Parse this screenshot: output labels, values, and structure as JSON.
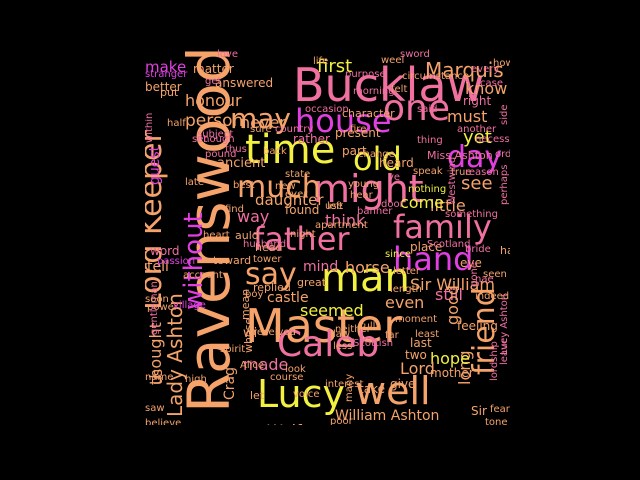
{
  "words": [
    {
      "text": "Ravenswood",
      "color": "#f5a36b"
    },
    {
      "text": "Master",
      "color": "#f5a36b"
    },
    {
      "text": "Bucklaw",
      "color": "#f070a0"
    },
    {
      "text": "Lord Keeper",
      "color": "#f5a36b"
    },
    {
      "text": "time",
      "color": "#f2f040"
    },
    {
      "text": "house",
      "color": "#e040e0"
    },
    {
      "text": "one",
      "color": "#f070a0"
    },
    {
      "text": "father",
      "color": "#f070a0"
    },
    {
      "text": "might",
      "color": "#f070a0"
    },
    {
      "text": "much",
      "color": "#f5a36b"
    },
    {
      "text": "Caleb",
      "color": "#f070a0"
    },
    {
      "text": "man",
      "color": "#f2f040"
    },
    {
      "text": "Lucy",
      "color": "#f2f040"
    },
    {
      "text": "well",
      "color": "#f5a36b"
    },
    {
      "text": "family",
      "color": "#f070a0"
    },
    {
      "text": "hand",
      "color": "#e040e0"
    },
    {
      "text": "friend",
      "color": "#f5a36b"
    },
    {
      "text": "day",
      "color": "#e040e0"
    },
    {
      "text": "old",
      "color": "#f2f040"
    },
    {
      "text": "say",
      "color": "#f5a36b"
    },
    {
      "text": "may",
      "color": "#f5a36b"
    },
    {
      "text": "without",
      "color": "#e040e0"
    },
    {
      "text": "Lady Ashton",
      "color": "#f5a36b"
    },
    {
      "text": "Marquis",
      "color": "#f5a36b"
    },
    {
      "text": "first",
      "color": "#f2f040"
    },
    {
      "text": "know",
      "color": "#f5a36b"
    },
    {
      "text": "must",
      "color": "#f5a36b"
    },
    {
      "text": "yet",
      "color": "#f2f040"
    },
    {
      "text": "see",
      "color": "#f5a36b"
    },
    {
      "text": "little",
      "color": "#f5a36b"
    },
    {
      "text": "come",
      "color": "#f2f040"
    },
    {
      "text": "daughter",
      "color": "#f5a36b"
    },
    {
      "text": "never",
      "color": "#f5a36b"
    },
    {
      "text": "honour",
      "color": "#f5a36b"
    },
    {
      "text": "make",
      "color": "#e040e0"
    },
    {
      "text": "person",
      "color": "#f5a36b"
    },
    {
      "text": "thought",
      "color": "#f5a36b"
    },
    {
      "text": "think",
      "color": "#f070a0"
    },
    {
      "text": "way",
      "color": "#f070a0"
    },
    {
      "text": "mind",
      "color": "#f070a0"
    },
    {
      "text": "horse",
      "color": "#f5a36b"
    },
    {
      "text": "castle",
      "color": "#f5a36b"
    },
    {
      "text": "seemed",
      "color": "#f2f040"
    },
    {
      "text": "Sir William",
      "color": "#f5a36b"
    },
    {
      "text": "still",
      "color": "#f070a0"
    },
    {
      "text": "even",
      "color": "#f5a36b"
    },
    {
      "text": "good",
      "color": "#f5a36b"
    },
    {
      "text": "long",
      "color": "#f5a36b"
    },
    {
      "text": "hope",
      "color": "#f2f040"
    },
    {
      "text": "Lord",
      "color": "#f5a36b"
    },
    {
      "text": "made",
      "color": "#f070a0"
    },
    {
      "text": "Craigengelt",
      "color": "#f5a36b"
    },
    {
      "text": "Wolf",
      "color": "#f5a36b"
    },
    {
      "text": "William Ashton",
      "color": "#f5a36b"
    },
    {
      "text": "us",
      "color": "#f5a36b"
    },
    {
      "text": "tell",
      "color": "#f5a36b"
    },
    {
      "text": "word",
      "color": "#f070a0"
    },
    {
      "text": "guest",
      "color": "#e040e0"
    },
    {
      "text": "better",
      "color": "#f5a36b"
    },
    {
      "text": "matter",
      "color": "#f5a36b"
    },
    {
      "text": "answered",
      "color": "#f5a36b"
    },
    {
      "text": "however",
      "color": "#f5a36b"
    },
    {
      "text": "present",
      "color": "#f5a36b"
    },
    {
      "text": "part",
      "color": "#f5a36b"
    },
    {
      "text": "heard",
      "color": "#f5a36b"
    },
    {
      "text": "ancient",
      "color": "#f5a36b"
    },
    {
      "text": "found",
      "color": "#f5a36b"
    },
    {
      "text": "place",
      "color": "#f5a36b"
    },
    {
      "text": "hae",
      "color": "#f5a36b"
    },
    {
      "text": "eye",
      "color": "#f5a36b"
    },
    {
      "text": "mother",
      "color": "#f5a36b"
    },
    {
      "text": "two",
      "color": "#f5a36b"
    },
    {
      "text": "last",
      "color": "#f5a36b"
    },
    {
      "text": "take",
      "color": "#f5a36b"
    },
    {
      "text": "give",
      "color": "#f5a36b"
    },
    {
      "text": "Sir",
      "color": "#f5a36b"
    },
    {
      "text": "Crag",
      "color": "#f5a36b"
    },
    {
      "text": "feeling",
      "color": "#f5a36b"
    },
    {
      "text": "rather",
      "color": "#f070a0"
    },
    {
      "text": "Miss Ashton",
      "color": "#f070a0"
    },
    {
      "text": "life",
      "color": "#f5a36b"
    },
    {
      "text": "purpose",
      "color": "#f070a0"
    },
    {
      "text": "circumstance",
      "color": "#f5a36b"
    },
    {
      "text": "every",
      "color": "#f070a0"
    },
    {
      "text": "right",
      "color": "#f070a0"
    },
    {
      "text": "another",
      "color": "#f070a0"
    },
    {
      "text": "character",
      "color": "#f5a36b"
    },
    {
      "text": "occasion",
      "color": "#f070a0"
    },
    {
      "text": "subject",
      "color": "#f070a0"
    },
    {
      "text": "sure",
      "color": "#f5a36b"
    },
    {
      "text": "put",
      "color": "#f5a36b"
    },
    {
      "text": "stranger",
      "color": "#e040e0"
    },
    {
      "text": "thing",
      "color": "#f070a0"
    },
    {
      "text": "speak",
      "color": "#f5a36b"
    },
    {
      "text": "state",
      "color": "#f5a36b"
    },
    {
      "text": "young",
      "color": "#f5a36b"
    },
    {
      "text": "new",
      "color": "#f5a36b"
    },
    {
      "text": "ever",
      "color": "#f5a36b"
    },
    {
      "text": "left",
      "color": "#f5a36b"
    },
    {
      "text": "auld",
      "color": "#f5a36b"
    },
    {
      "text": "night",
      "color": "#f5a36b"
    },
    {
      "text": "head",
      "color": "#f5a36b"
    },
    {
      "text": "toward",
      "color": "#f5a36b"
    },
    {
      "text": "apartment",
      "color": "#f5a36b"
    },
    {
      "text": "since",
      "color": "#f2f040"
    },
    {
      "text": "replied",
      "color": "#f5a36b"
    },
    {
      "text": "great",
      "color": "#f5a36b"
    },
    {
      "text": "mean",
      "color": "#f5a36b"
    },
    {
      "text": "boy",
      "color": "#f5a36b"
    },
    {
      "text": "received",
      "color": "#f5a36b"
    },
    {
      "text": "whose",
      "color": "#f5a36b"
    },
    {
      "text": "spirit",
      "color": "#f5a36b"
    },
    {
      "text": "Alice",
      "color": "#f5a36b"
    },
    {
      "text": "course",
      "color": "#f5a36b"
    },
    {
      "text": "interest",
      "color": "#f5a36b"
    },
    {
      "text": "many",
      "color": "#f5a36b"
    },
    {
      "text": "name",
      "color": "#f5a36b"
    },
    {
      "text": "high",
      "color": "#f5a36b"
    },
    {
      "text": "saw",
      "color": "#f5a36b"
    },
    {
      "text": "believe",
      "color": "#f5a36b"
    },
    {
      "text": "power",
      "color": "#f5a36b"
    },
    {
      "text": "fear",
      "color": "#f5a36b"
    },
    {
      "text": "leave",
      "color": "#f070a0"
    },
    {
      "text": "indeed",
      "color": "#f5a36b"
    },
    {
      "text": "seen",
      "color": "#f5a36b"
    },
    {
      "text": "length",
      "color": "#f5a36b"
    },
    {
      "text": "moment",
      "color": "#f5a36b"
    },
    {
      "text": "least",
      "color": "#f5a36b"
    },
    {
      "text": "less",
      "color": "#f5a36b"
    },
    {
      "text": "look",
      "color": "#f5a36b"
    },
    {
      "text": "voice",
      "color": "#f5a36b"
    },
    {
      "text": "law",
      "color": "#f5a36b"
    },
    {
      "text": "full",
      "color": "#f5a36b"
    },
    {
      "text": "far",
      "color": "#f5a36b"
    },
    {
      "text": "lordship",
      "color": "#f070a0"
    },
    {
      "text": "Scotland",
      "color": "#f070a0"
    },
    {
      "text": "fire",
      "color": "#f5a36b"
    },
    {
      "text": "back",
      "color": "#f5a36b"
    },
    {
      "text": "heart",
      "color": "#f5a36b"
    },
    {
      "text": "find",
      "color": "#f5a36b"
    },
    {
      "text": "love",
      "color": "#f070a0"
    },
    {
      "text": "sword",
      "color": "#f070a0"
    },
    {
      "text": "order",
      "color": "#f070a0"
    },
    {
      "text": "true",
      "color": "#f5a36b"
    },
    {
      "text": "reason",
      "color": "#f070a0"
    },
    {
      "text": "something",
      "color": "#f070a0"
    },
    {
      "text": "letter",
      "color": "#f5a36b"
    },
    {
      "text": "account",
      "color": "#f5a36b"
    },
    {
      "text": "village",
      "color": "#e040e0"
    },
    {
      "text": "passion",
      "color": "#e040e0"
    },
    {
      "text": "tower",
      "color": "#f5a36b"
    },
    {
      "text": "nothing",
      "color": "#f2f040"
    },
    {
      "text": "Westwind",
      "color": "#f070a0"
    },
    {
      "text": "pound",
      "color": "#f070a0"
    },
    {
      "text": "enough",
      "color": "#f070a0"
    },
    {
      "text": "country",
      "color": "#f070a0"
    },
    {
      "text": "within",
      "color": "#f070a0"
    },
    {
      "text": "set",
      "color": "#f070a0"
    },
    {
      "text": "late",
      "color": "#f5a36b"
    },
    {
      "text": "best",
      "color": "#f5a36b"
    },
    {
      "text": "half",
      "color": "#f5a36b"
    },
    {
      "text": "gentleman",
      "color": "#f070a0"
    },
    {
      "text": "necessary",
      "color": "#f070a0"
    },
    {
      "text": "perhaps",
      "color": "#f070a0"
    },
    {
      "text": "weel",
      "color": "#f5a36b"
    },
    {
      "text": "felt",
      "color": "#f5a36b"
    },
    {
      "text": "morning",
      "color": "#f070a0"
    },
    {
      "text": "case",
      "color": "#f070a0"
    },
    {
      "text": "side",
      "color": "#f070a0"
    },
    {
      "text": "change",
      "color": "#f5a36b"
    },
    {
      "text": "poor",
      "color": "#f5a36b"
    },
    {
      "text": "use",
      "color": "#f5a36b"
    },
    {
      "text": "hear",
      "color": "#f5a36b"
    },
    {
      "text": "gone",
      "color": "#f070a0"
    },
    {
      "text": "thus",
      "color": "#f070a0"
    },
    {
      "text": "Lucy Ashton",
      "color": "#f070a0"
    },
    {
      "text": "Scottish",
      "color": "#f070a0"
    },
    {
      "text": "get",
      "color": "#f070a0"
    },
    {
      "text": "door",
      "color": "#f070a0"
    },
    {
      "text": "banner",
      "color": "#f070a0"
    },
    {
      "text": "soon",
      "color": "#f5a36b"
    },
    {
      "text": "husband",
      "color": "#f070a0"
    },
    {
      "text": "ye",
      "color": "#f070a0"
    },
    {
      "text": "said",
      "color": "#f070a0"
    },
    {
      "text": "nae",
      "color": "#f070a0"
    },
    {
      "text": "wi",
      "color": "#f5a36b"
    },
    {
      "text": "let",
      "color": "#f5a36b"
    },
    {
      "text": "neither",
      "color": "#f5a36b"
    },
    {
      "text": "bride",
      "color": "#f070a0"
    },
    {
      "text": "tone",
      "color": "#f5a36b"
    }
  ]
}
